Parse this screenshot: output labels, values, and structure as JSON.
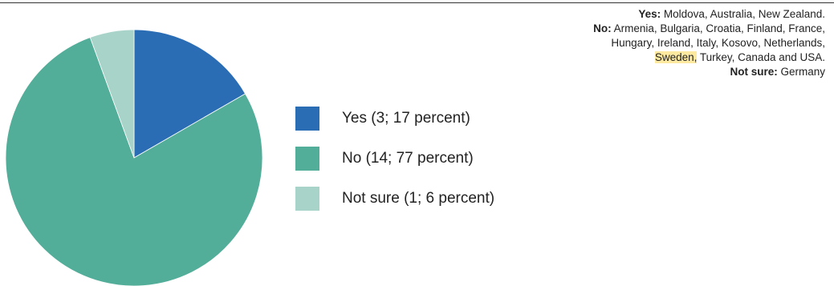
{
  "chart_data": {
    "type": "pie",
    "title": "",
    "slices": [
      {
        "label": "Yes (3; 17 percent)",
        "count": 3,
        "percent": 17,
        "color": "#2a6db5"
      },
      {
        "label": "No (14; 77 percent)",
        "count": 14,
        "percent": 77,
        "color": "#52ad99"
      },
      {
        "label": "Not sure (1; 6 percent)",
        "count": 1,
        "percent": 6,
        "color": "#a7d3c9"
      }
    ],
    "legend_position": "right",
    "annotation": {
      "yes_label": "Yes:",
      "yes_text": " Moldova, Australia, New Zealand.",
      "no_label": "No:",
      "no_text_1": " Armenia, Bulgaria, Croatia, Finland, France,",
      "no_text_2": "Hungary, Ireland, Italy, Kosovo, Netherlands,",
      "no_highlight": "Sweden,",
      "no_text_3": " Turkey, Canada and USA.",
      "notsure_label": "Not sure:",
      "notsure_text": " Germany",
      "highlight_color": "#fde9a0"
    }
  }
}
